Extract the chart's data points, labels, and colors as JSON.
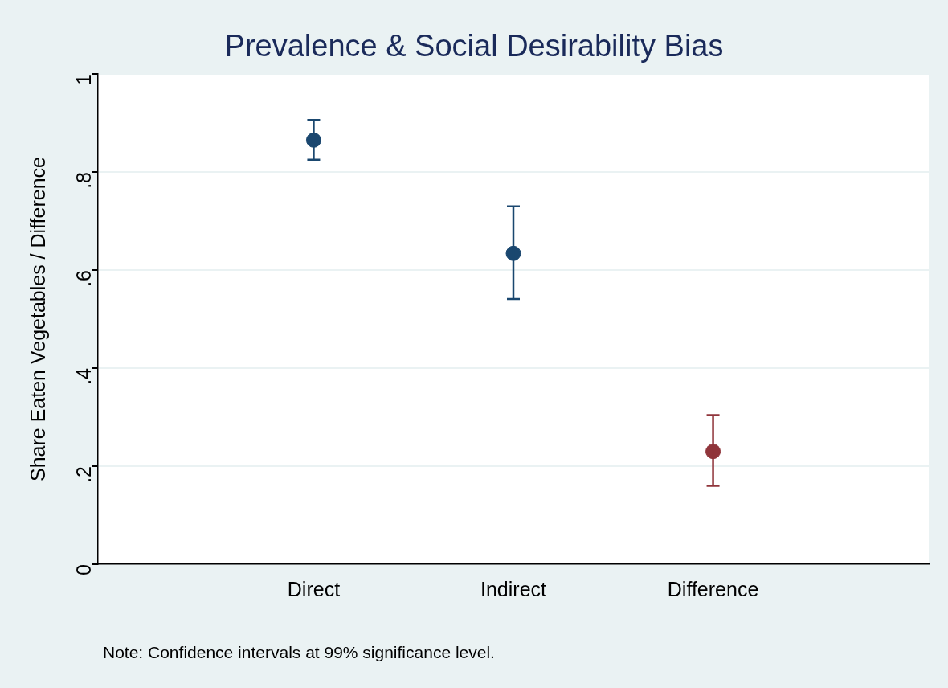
{
  "chart_data": {
    "type": "scatter",
    "title": "Prevalence & Social Desirability Bias",
    "ylabel": "Share Eaten Vegetables / Difference",
    "categories": [
      "Direct",
      "Indirect",
      "Difference"
    ],
    "values": [
      0.865,
      0.634,
      0.23
    ],
    "colors": [
      "#1a476f",
      "#1a476f",
      "#90353b"
    ],
    "errors": [
      [
        0.825,
        0.906
      ],
      [
        0.541,
        0.73
      ],
      [
        0.16,
        0.304
      ]
    ],
    "ylim": [
      0,
      1
    ],
    "yticks": [
      {
        "value": 0,
        "label": "0"
      },
      {
        "value": 0.2,
        "label": ".2"
      },
      {
        "value": 0.4,
        "label": ".4"
      },
      {
        "value": 0.6,
        "label": ".6"
      },
      {
        "value": 0.8,
        "label": ".8"
      },
      {
        "value": 1,
        "label": "1"
      }
    ],
    "grid": "y",
    "legend": false,
    "marker": "circle",
    "annotations": [
      "Note: Confidence intervals at 99% significance level."
    ]
  }
}
